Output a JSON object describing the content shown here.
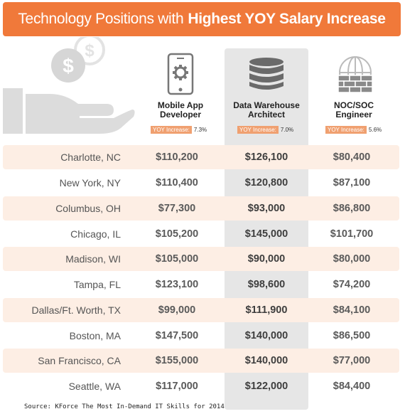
{
  "banner": {
    "title_regular": "Technology Positions with",
    "title_bold": "Highest YOY Salary Increase"
  },
  "columns": [
    {
      "name_line1": "Mobile App",
      "name_line2": "Developer",
      "yoy_label": "YOY Increase:",
      "yoy_value": "7.3%",
      "icon": "smartphone-gear-icon"
    },
    {
      "name_line1": "Data Warehouse",
      "name_line2": "Architect",
      "yoy_label": "YOY Increase:",
      "yoy_value": "7.0%",
      "icon": "database-icon"
    },
    {
      "name_line1": "NOC/SOC",
      "name_line2": "Engineer",
      "yoy_label": "YOY Increase:",
      "yoy_value": "5.6%",
      "icon": "globe-firewall-icon"
    }
  ],
  "rows": [
    {
      "city": "Charlotte, NC",
      "values": [
        "$110,200",
        "$126,100",
        "$80,400"
      ]
    },
    {
      "city": "New York, NY",
      "values": [
        "$110,400",
        "$120,800",
        "$87,100"
      ]
    },
    {
      "city": "Columbus, OH",
      "values": [
        "$77,300",
        "$93,000",
        "$86,800"
      ]
    },
    {
      "city": "Chicago, IL",
      "values": [
        "$105,200",
        "$145,000",
        "$101,700"
      ]
    },
    {
      "city": "Madison, WI",
      "values": [
        "$105,000",
        "$90,000",
        "$80,000"
      ]
    },
    {
      "city": "Tampa, FL",
      "values": [
        "$123,100",
        "$98,600",
        "$74,200"
      ]
    },
    {
      "city": "Dallas/Ft. Worth, TX",
      "values": [
        "$99,000",
        "$111,900",
        "$84,100"
      ]
    },
    {
      "city": "Boston, MA",
      "values": [
        "$147,500",
        "$140,000",
        "$86,500"
      ]
    },
    {
      "city": "San Francisco, CA",
      "values": [
        "$155,000",
        "$140,000",
        "$77,000"
      ]
    },
    {
      "city": "Seattle, WA",
      "values": [
        "$117,000",
        "$122,000",
        "$84,400"
      ]
    }
  ],
  "source": "Source: KForce The Most In-Demand IT Skills for 2014",
  "colors": {
    "accent": "#f0793a",
    "band": "#fdeee4",
    "highlight": "#e6e6e6"
  }
}
